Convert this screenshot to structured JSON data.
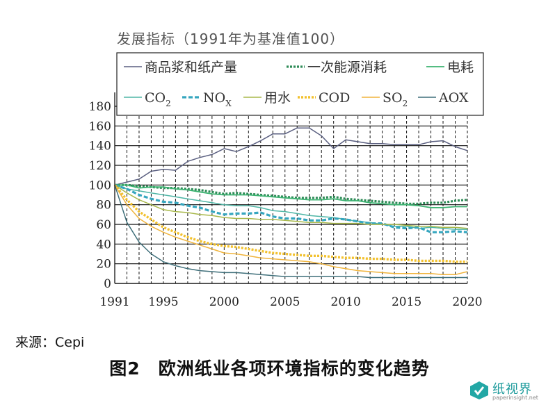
{
  "subtitle": "发展指标（1991年为基准值100）",
  "source": "来源：Cepi",
  "caption": {
    "num": "图2",
    "text": "欧洲纸业各项环境指标的变化趋势"
  },
  "watermark": {
    "name": "纸视界",
    "url": "paperinsight.net"
  },
  "chart_data": {
    "type": "line",
    "title": "",
    "xlabel": "",
    "ylabel": "",
    "xlim": [
      1991,
      2020
    ],
    "ylim": [
      0,
      180
    ],
    "x_ticks": [
      1991,
      1995,
      2000,
      2005,
      2010,
      2015,
      2020
    ],
    "y_ticks": [
      0,
      20,
      40,
      60,
      80,
      100,
      120,
      140,
      160,
      180
    ],
    "grid": {
      "vertical_dashed_every_year": true,
      "horizontal_solid": true
    },
    "legend_position": "top",
    "legend_rows": [
      [
        {
          "series": 0,
          "label": "商品浆和纸产量"
        },
        {
          "series": 1,
          "label": "一次能源消耗"
        },
        {
          "series": 2,
          "label": "电耗"
        }
      ],
      [
        {
          "series": 3,
          "label": "CO",
          "sub": "2"
        },
        {
          "series": 4,
          "label": "NO",
          "sub": "X"
        },
        {
          "series": 5,
          "label": "用水"
        },
        {
          "series": 6,
          "label": "COD"
        },
        {
          "series": 7,
          "label": "SO",
          "sub": "2"
        },
        {
          "series": 8,
          "label": "AOX"
        }
      ]
    ],
    "x": [
      1991,
      1992,
      1993,
      1994,
      1995,
      1996,
      1997,
      1998,
      1999,
      2000,
      2001,
      2002,
      2003,
      2004,
      2005,
      2006,
      2007,
      2008,
      2009,
      2010,
      2011,
      2012,
      2013,
      2014,
      2015,
      2016,
      2017,
      2018,
      2019,
      2020
    ],
    "series": [
      {
        "name": "商品浆和纸产量",
        "color": "#5a5f80",
        "dash": "solid",
        "width": 1.5,
        "values": [
          100,
          103,
          106,
          114,
          116,
          115,
          124,
          128,
          131,
          137,
          134,
          139,
          145,
          152,
          152,
          158,
          158,
          150,
          137,
          146,
          144,
          142,
          142,
          141,
          141,
          141,
          144,
          145,
          139,
          135
        ]
      },
      {
        "name": "一次能源消耗",
        "color": "#2e8b57",
        "dash": "dotted",
        "width": 3.2,
        "values": [
          100,
          100,
          99,
          98,
          97,
          97,
          96,
          95,
          93,
          91,
          92,
          91,
          90,
          89,
          88,
          87,
          87,
          87,
          88,
          86,
          85,
          84,
          83,
          82,
          81,
          81,
          82,
          82,
          84,
          85
        ]
      },
      {
        "name": "电耗",
        "color": "#3cb371",
        "dash": "solid",
        "width": 1.8,
        "values": [
          100,
          100,
          97,
          98,
          98,
          96,
          95,
          93,
          91,
          90,
          90,
          90,
          89,
          88,
          87,
          86,
          85,
          85,
          86,
          84,
          84,
          82,
          81,
          80,
          80,
          79,
          77,
          77,
          78,
          78
        ]
      },
      {
        "name": "CO2",
        "color": "#4fb6a6",
        "dash": "solid",
        "width": 1.5,
        "values": [
          100,
          96,
          94,
          92,
          90,
          88,
          86,
          84,
          82,
          80,
          79,
          79,
          77,
          74,
          73,
          71,
          69,
          68,
          67,
          65,
          63,
          62,
          60,
          58,
          58,
          56,
          57,
          56,
          55,
          55
        ]
      },
      {
        "name": "NOX",
        "color": "#36a6bf",
        "dash": "dashed",
        "width": 3.2,
        "values": [
          100,
          96,
          90,
          86,
          83,
          82,
          79,
          77,
          73,
          70,
          71,
          71,
          72,
          68,
          66,
          66,
          64,
          64,
          66,
          65,
          63,
          61,
          61,
          57,
          56,
          57,
          52,
          52,
          53,
          52
        ]
      },
      {
        "name": "用水",
        "color": "#a8b84a",
        "dash": "solid",
        "width": 1.5,
        "values": [
          100,
          92,
          85,
          80,
          75,
          73,
          72,
          70,
          69,
          67,
          66,
          66,
          65,
          65,
          64,
          63,
          62,
          62,
          61,
          61,
          61,
          60,
          60,
          60,
          59,
          58,
          58,
          57,
          57,
          56
        ]
      },
      {
        "name": "COD",
        "color": "#f2c12e",
        "dash": "dotted",
        "width": 3.4,
        "values": [
          100,
          85,
          73,
          65,
          57,
          52,
          47,
          43,
          40,
          38,
          37,
          35,
          33,
          31,
          30,
          29,
          28,
          28,
          27,
          26,
          26,
          25,
          25,
          24,
          24,
          23,
          23,
          23,
          22,
          22
        ]
      },
      {
        "name": "SO2",
        "color": "#f0b43c",
        "dash": "solid",
        "width": 1.5,
        "values": [
          100,
          80,
          66,
          58,
          52,
          47,
          43,
          39,
          35,
          31,
          30,
          28,
          26,
          25,
          24,
          23,
          22,
          20,
          17,
          15,
          13,
          12,
          11,
          10,
          10,
          10,
          10,
          9,
          9,
          12
        ]
      },
      {
        "name": "AOX",
        "color": "#3f6f7a",
        "dash": "solid",
        "width": 1.5,
        "values": [
          100,
          62,
          42,
          30,
          22,
          18,
          15,
          13,
          12,
          11,
          11,
          10,
          9,
          8,
          7,
          7,
          7,
          7,
          7,
          7,
          7,
          6,
          6,
          6,
          6,
          6,
          6,
          6,
          6,
          6
        ]
      }
    ]
  }
}
